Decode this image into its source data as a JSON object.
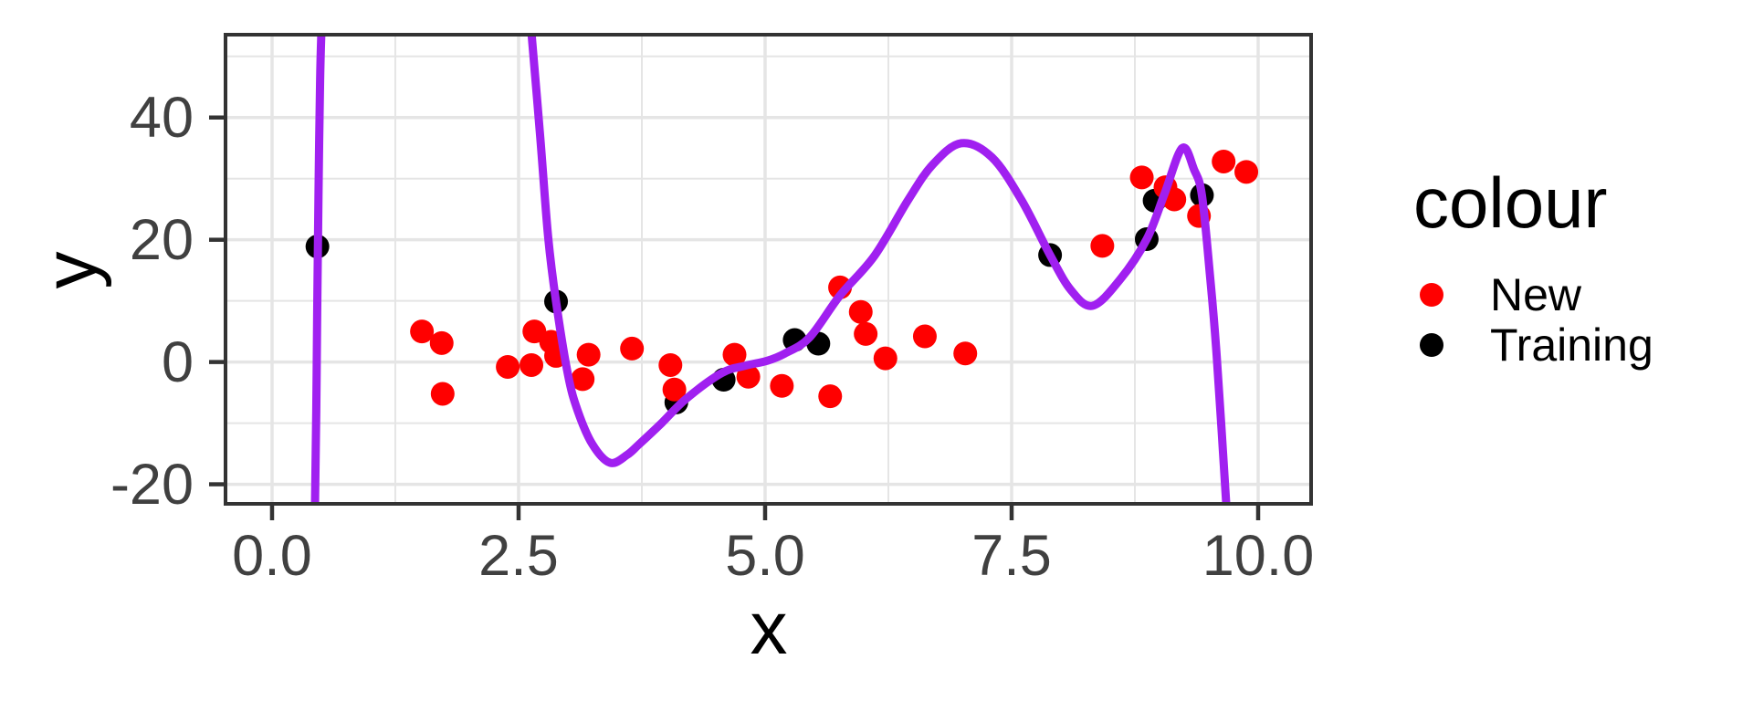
{
  "chart_data": {
    "type": "scatter",
    "title": "",
    "xlabel": "x",
    "ylabel": "y",
    "xlim": [
      -0.472,
      10.537
    ],
    "ylim": [
      -23.2,
      53.55
    ],
    "grid": "on",
    "legend_position": "right",
    "x_major_ticks": [
      0,
      2.5,
      5,
      7.5,
      10
    ],
    "x_tick_labels": [
      "0.0",
      "2.5",
      "5.0",
      "7.5",
      "10.0"
    ],
    "y_major_ticks": [
      -20,
      0,
      20,
      40
    ],
    "y_tick_labels": [
      "-20",
      "0",
      "20",
      "40"
    ],
    "x_minor_ticks": [
      1.25,
      3.75,
      6.25,
      8.75
    ],
    "y_minor_ticks": [
      -10,
      10,
      30,
      50
    ],
    "legend": {
      "title": "colour",
      "entries": [
        {
          "label": "New",
          "color": "#FF0000"
        },
        {
          "label": "Training",
          "color": "#000000"
        }
      ]
    },
    "series": [
      {
        "name": "New",
        "type": "scatter",
        "color": "#FF0000",
        "marker_radius": 13,
        "points": [
          [
            1.52,
            5.0
          ],
          [
            1.72,
            3.1
          ],
          [
            1.73,
            -5.2
          ],
          [
            2.39,
            -0.8
          ],
          [
            2.63,
            -0.5
          ],
          [
            2.66,
            5.0
          ],
          [
            2.83,
            3.3
          ],
          [
            2.88,
            1.0
          ],
          [
            3.15,
            -2.8
          ],
          [
            3.21,
            1.2
          ],
          [
            3.65,
            2.2
          ],
          [
            4.04,
            -0.5
          ],
          [
            4.08,
            -4.5
          ],
          [
            4.69,
            1.2
          ],
          [
            4.83,
            -2.4
          ],
          [
            5.17,
            -3.9
          ],
          [
            5.66,
            -5.6
          ],
          [
            5.76,
            12.2
          ],
          [
            5.97,
            8.2
          ],
          [
            6.02,
            4.6
          ],
          [
            6.22,
            0.6
          ],
          [
            6.62,
            4.2
          ],
          [
            7.03,
            1.4
          ],
          [
            8.42,
            19.0
          ],
          [
            8.82,
            30.2
          ],
          [
            9.06,
            28.6
          ],
          [
            9.15,
            26.6
          ],
          [
            9.4,
            23.9
          ],
          [
            9.65,
            32.8
          ],
          [
            9.88,
            31.1
          ]
        ]
      },
      {
        "name": "Training",
        "type": "scatter",
        "color": "#000000",
        "marker_radius": 13,
        "points": [
          [
            0.46,
            18.9
          ],
          [
            2.88,
            9.9
          ],
          [
            4.1,
            -6.6
          ],
          [
            4.58,
            -2.9
          ],
          [
            5.3,
            3.6
          ],
          [
            5.54,
            3.0
          ],
          [
            7.89,
            17.5
          ],
          [
            8.87,
            20.1
          ],
          [
            8.95,
            26.4
          ],
          [
            9.43,
            27.3
          ]
        ]
      },
      {
        "name": "fitted-polynomial-curve",
        "type": "line",
        "color": "#A020F0",
        "stroke_width": 9,
        "branches": [
          [
            [
              0.435,
              -24
            ],
            [
              0.448,
              -8
            ],
            [
              0.458,
              8
            ],
            [
              0.465,
              18.9
            ],
            [
              0.475,
              33
            ],
            [
              0.487,
              46
            ],
            [
              0.5,
              54
            ]
          ],
          [
            [
              2.63,
              54
            ],
            [
              2.72,
              36.8
            ],
            [
              2.8,
              20.4
            ],
            [
              2.88,
              9.9
            ],
            [
              3.0,
              -2.0
            ],
            [
              3.1,
              -8.0
            ],
            [
              3.25,
              -13.5
            ],
            [
              3.43,
              -16.5
            ],
            [
              3.6,
              -15.2
            ],
            [
              3.72,
              -13.5
            ],
            [
              3.95,
              -10.0
            ],
            [
              4.2,
              -6.0
            ],
            [
              4.56,
              -1.8
            ],
            [
              4.8,
              -0.6
            ],
            [
              5.02,
              0.2
            ],
            [
              5.2,
              1.4
            ],
            [
              5.45,
              4.0
            ],
            [
              5.76,
              10.9
            ],
            [
              6.11,
              17.4
            ],
            [
              6.45,
              26.5
            ],
            [
              6.7,
              32.3
            ],
            [
              6.99,
              35.8
            ],
            [
              7.3,
              33.5
            ],
            [
              7.6,
              26.5
            ],
            [
              7.89,
              17.5
            ],
            [
              8.1,
              11.8
            ],
            [
              8.32,
              9.2
            ],
            [
              8.6,
              13.5
            ],
            [
              8.87,
              20.1
            ],
            [
              9.05,
              27.5
            ],
            [
              9.23,
              35.0
            ],
            [
              9.35,
              31.5
            ],
            [
              9.43,
              27.3
            ],
            [
              9.51,
              14.4
            ],
            [
              9.58,
              1.0
            ],
            [
              9.68,
              -24
            ]
          ]
        ]
      }
    ]
  },
  "style": {
    "background": "#FFFFFF",
    "panel_background": "#FFFFFF",
    "grid_color": "#E5E5E5",
    "panel_border_color": "#333333",
    "tick_color": "#333333",
    "tick_label_color": "#404040",
    "title_color": "#000000"
  }
}
